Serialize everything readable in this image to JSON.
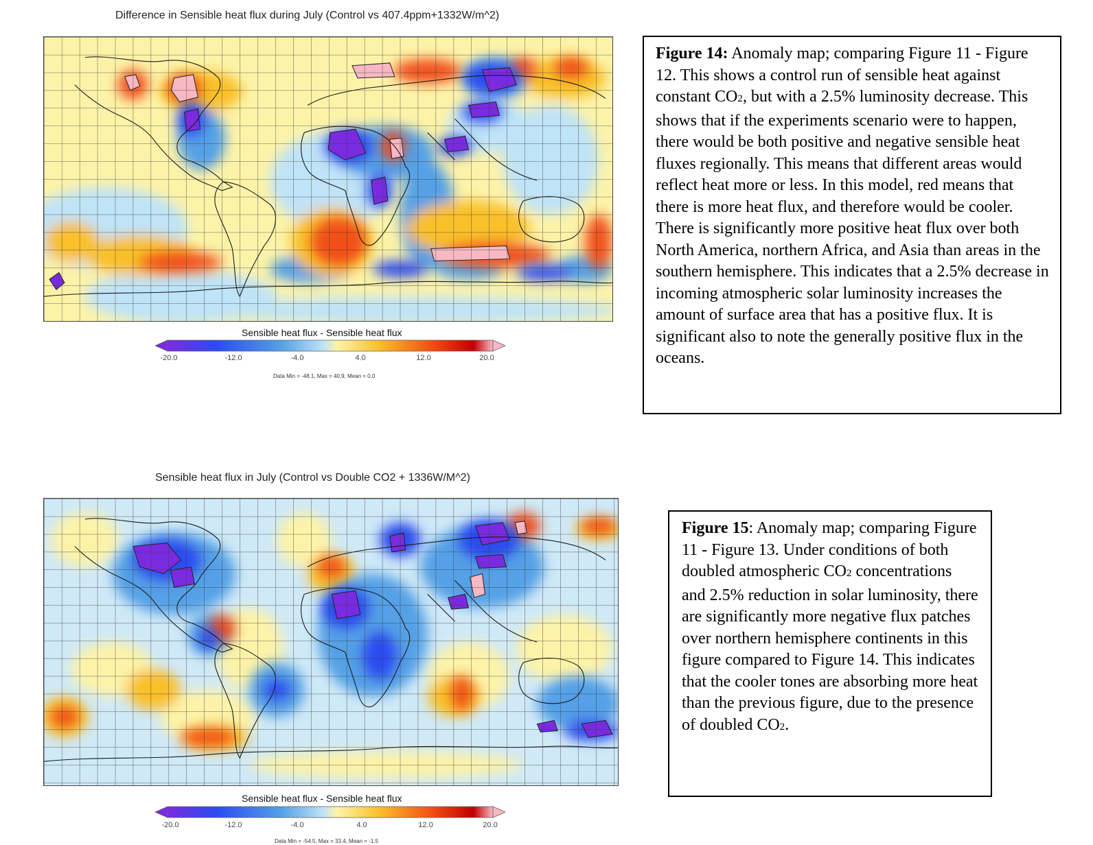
{
  "figure14": {
    "map_title": "Difference in Sensible heat flux during July (Control vs 407.4ppm+1332W/m^2)",
    "colorbar_label": "Sensible heat flux - Sensible heat flux",
    "colorbar_ticks": [
      "-20.0",
      "-12.0",
      "-4.0",
      "4.0",
      "12.0",
      "20.0"
    ],
    "stats": "Data Min = -48.1, Max = 40.9, Mean = 0.0",
    "caption": {
      "heading": "Figure 14:",
      "text_a": " Anomaly map; comparing Figure 11 - Figure 12. This shows a control run of sensible heat against constant CO",
      "co2_subscript": "2",
      "text_b": ", but with a 2.5% luminosity decrease. This shows that if the experiments scenario were to happen, there would be both positive and negative sensible heat fluxes regionally. This means that different areas would reflect heat more or less. In this model, red means that there is more heat flux, and therefore would be cooler. There is significantly more positive heat flux over both North America, northern Africa, and Asia than areas in the southern hemisphere. This indicates that a 2.5% decrease in incoming atmospheric solar luminosity increases the amount of surface area that has a positive flux. It is significant also to note the generally positive flux in the oceans."
    }
  },
  "figure15": {
    "map_title": "Sensible heat flux in July (Control vs Double CO2 + 1336W/M^2)",
    "colorbar_label": "Sensible heat flux - Sensible heat flux",
    "colorbar_ticks": [
      "-20.0",
      "-12.0",
      "-4.0",
      "4.0",
      "12.0",
      "20.0"
    ],
    "stats": "Data Min = -54.5, Max = 33.4, Mean = -1.5",
    "caption": {
      "heading": "Figure 15",
      "text_a": ": Anomaly map; comparing Figure 11 - Figure 13. Under conditions of both doubled atmospheric CO",
      "co2_subscript_1": "2",
      "text_b": " concentrations and 2.5% reduction in solar luminosity, there are significantly more negative flux patches over northern hemisphere continents in this figure compared to Figure 14. This indicates that the cooler tones are absorbing more heat than the previous figure, due to the presence of doubled CO",
      "co2_subscript_2": "2",
      "text_c": "."
    }
  },
  "colors": {
    "extreme_negative": "#7a2be0",
    "strong_negative": "#2b4bf0",
    "moderate_negative": "#55a0e6",
    "weak_negative": "#bfe3f7",
    "weak_positive": "#fdf3a8",
    "moderate_positive": "#f9c02c",
    "strong_positive": "#f04a12",
    "extreme_positive": "#c00000",
    "saturated_positive": "#f7b8c4"
  }
}
